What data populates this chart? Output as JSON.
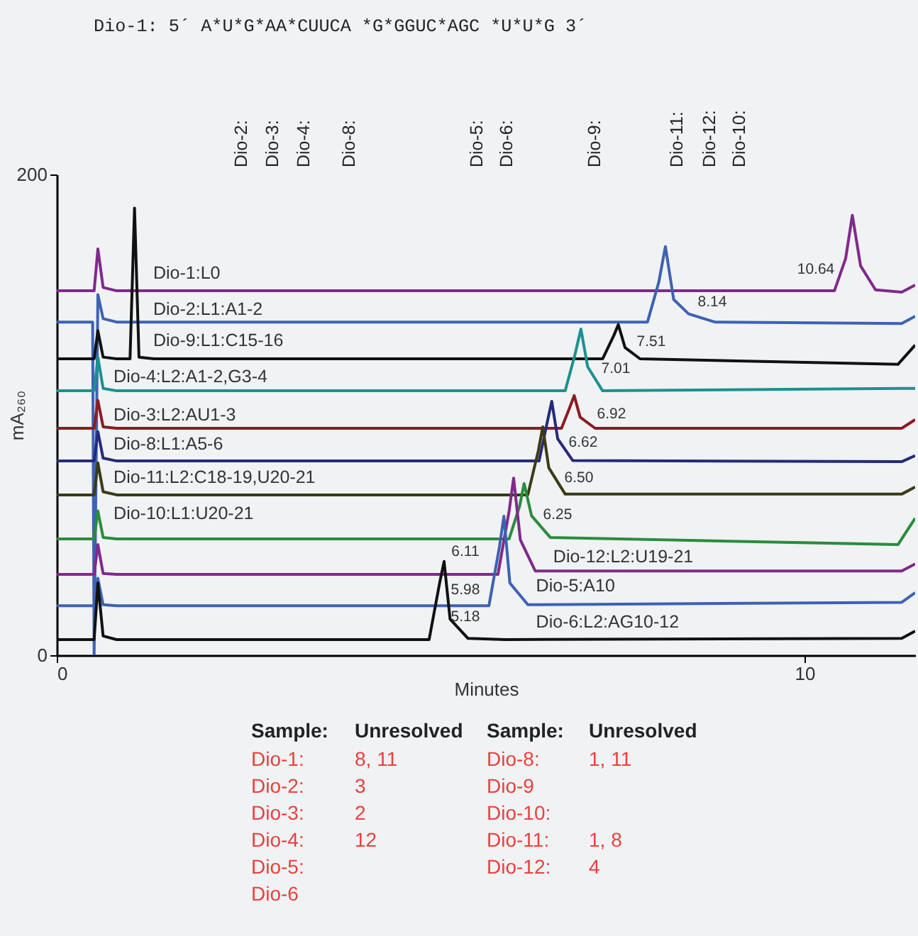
{
  "chart_data": {
    "type": "line",
    "xlabel": "Minutes",
    "ylabel": "mA₂₆₀",
    "xlim": [
      0,
      11.48
    ],
    "ylim": [
      0,
      200
    ],
    "xticks": [
      0,
      10
    ],
    "yticks": [
      0,
      200
    ],
    "grid": false,
    "line_style": "solid",
    "marker": "none",
    "series": [
      {
        "name": "Dio-1:L0",
        "color": "#7f2a8a",
        "x": [
          0,
          0.5,
          0.55,
          0.62,
          0.8,
          10.4,
          10.55,
          10.64,
          10.75,
          10.95,
          11.3,
          11.48
        ],
        "values": [
          151.6,
          151.6,
          169,
          153,
          151.6,
          151.6,
          165,
          183,
          162,
          152,
          151,
          154
        ]
      },
      {
        "name": "Dio-2:L1:A1-2",
        "color": "#3d62b3",
        "x": [
          0,
          0.48,
          0.5,
          0.55,
          0.62,
          0.8,
          7.9,
          8.05,
          8.14,
          8.25,
          8.45,
          8.8,
          11.3,
          11.48
        ],
        "values": [
          138.6,
          138.6,
          0,
          150,
          140,
          138.6,
          138.6,
          155,
          170,
          148,
          142,
          138.6,
          138,
          141
        ]
      },
      {
        "name": "Dio-9:L1:C15-16",
        "color": "#111111",
        "x": [
          0,
          0.5,
          0.55,
          0.62,
          0.8,
          0.98,
          1.04,
          1.1,
          1.3,
          7.3,
          7.45,
          7.51,
          7.6,
          7.8,
          11.25,
          11.48
        ],
        "values": [
          123.3,
          123.3,
          135,
          124,
          123.3,
          123.3,
          186,
          124,
          123.3,
          123.3,
          133,
          137.5,
          128,
          123.3,
          121,
          129
        ]
      },
      {
        "name": "Dio-4:L2:A1-2,G3-4",
        "color": "#1b9191",
        "x": [
          0,
          0.5,
          0.55,
          0.62,
          0.8,
          6.8,
          6.93,
          7.01,
          7.1,
          7.3,
          11.48
        ],
        "values": [
          110,
          110,
          124,
          111,
          110,
          110,
          125,
          135.7,
          120,
          110,
          111
        ]
      },
      {
        "name": "Dio-3:L2:AU1-3",
        "color": "#8b1c22",
        "x": [
          0,
          0.5,
          0.55,
          0.62,
          0.8,
          6.75,
          6.86,
          6.92,
          7.0,
          7.2,
          11.3,
          11.48
        ],
        "values": [
          94.4,
          94.4,
          106,
          95,
          94.4,
          94.4,
          103,
          108,
          99,
          94.4,
          94.4,
          98
        ]
      },
      {
        "name": "Dio-8:L1:A5-6",
        "color": "#27297a",
        "x": [
          0,
          0.5,
          0.55,
          0.62,
          0.8,
          6.45,
          6.56,
          6.62,
          6.7,
          6.9,
          11.3,
          11.48
        ],
        "values": [
          80.8,
          80.8,
          93,
          82,
          80.8,
          80.8,
          97,
          105.6,
          90,
          81,
          80.5,
          83
        ]
      },
      {
        "name": "Dio-11:L2:C18-19,U20-21",
        "color": "#3b3a17",
        "x": [
          0,
          0.5,
          0.55,
          0.62,
          0.8,
          6.3,
          6.44,
          6.5,
          6.58,
          6.8,
          11.3,
          11.48
        ],
        "values": [
          66.7,
          66.7,
          80,
          68,
          66.7,
          66.7,
          85,
          95,
          78,
          67,
          67,
          70
        ]
      },
      {
        "name": "Dio-10:L1:U20-21",
        "color": "#2a8c3c",
        "x": [
          0,
          0.5,
          0.55,
          0.62,
          0.8,
          6.05,
          6.19,
          6.25,
          6.35,
          6.6,
          11.25,
          11.48
        ],
        "values": [
          48.4,
          48.4,
          60,
          49,
          48.4,
          48.4,
          62,
          71.4,
          58,
          49,
          46,
          57
        ]
      },
      {
        "name": "Dio-12:L2:U19-21",
        "color": "#7f2a8a",
        "x": [
          0,
          0.5,
          0.55,
          0.62,
          0.8,
          5.9,
          6.05,
          6.11,
          6.2,
          6.4,
          11.3,
          11.48
        ],
        "values": [
          33.6,
          33.6,
          46,
          34,
          33.6,
          33.6,
          60,
          73.7,
          48,
          35,
          35,
          38
        ]
      },
      {
        "name": "Dio-5:A10",
        "color": "#3d62b3",
        "x": [
          0,
          0.5,
          0.55,
          0.62,
          0.8,
          5.78,
          5.92,
          5.98,
          6.06,
          6.3,
          11.3,
          11.48
        ],
        "values": [
          20.6,
          20.6,
          32,
          21,
          20.6,
          20.6,
          45,
          57.8,
          30,
          21,
          22,
          26
        ]
      },
      {
        "name": "Dio-6:L2:AG10-12",
        "color": "#111111",
        "x": [
          0,
          0.5,
          0.55,
          0.62,
          0.8,
          4.98,
          5.12,
          5.18,
          5.26,
          5.5,
          6.0,
          11.3,
          11.48
        ],
        "values": [
          6.5,
          6.5,
          30,
          8,
          6.5,
          6.5,
          30,
          39,
          15,
          7,
          6.5,
          7,
          10
        ]
      }
    ],
    "annotations": [
      "Dio-1: 5´ A*U*G*AA*CUUCA *G*GGUC*AGC *U*U*G 3´",
      "Dio-2:",
      "Dio-3:",
      "Dio-4:",
      "Dio-8:",
      "Dio-5:",
      "Dio-6:",
      "Dio-9:",
      "Dio-11:",
      "Dio-12:",
      "Dio-10:",
      "Sample:",
      "Unresolved",
      "Dio-1:",
      "8, 11",
      "Dio-2:",
      "3",
      "Dio-3:",
      "2",
      "Dio-4:",
      "12",
      "Dio-5:",
      "Dio-6",
      "Sample:",
      "Unresolved",
      "Dio-8:",
      "1, 11",
      "Dio-9",
      "Dio-10:",
      "Dio-11:",
      "1, 8",
      "Dio-12:",
      "4",
      "10.64",
      "8.14",
      "7.51",
      "7.01",
      "6.92",
      "6.62",
      "6.50",
      "6.25",
      "6.11",
      "5.98",
      "5.18"
    ]
  }
}
